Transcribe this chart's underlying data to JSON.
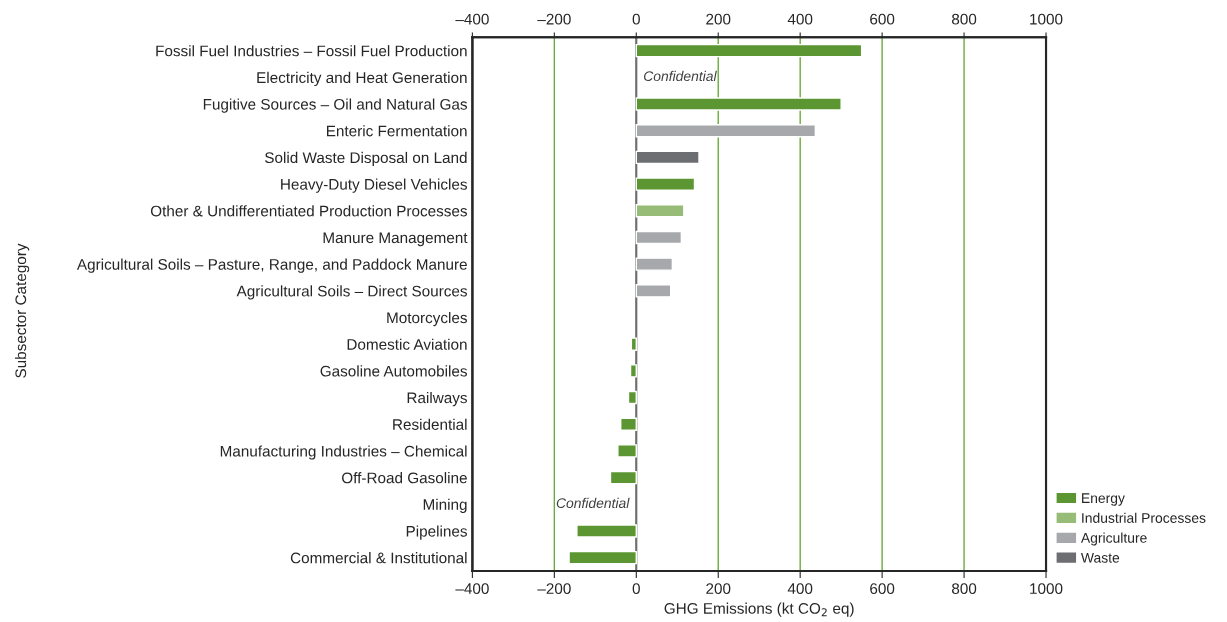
{
  "chart_data": {
    "type": "bar",
    "orientation": "horizontal",
    "xlabel": "GHG Emissions (kt CO$_{2}$ eq)",
    "ylabel": "Subsector Category",
    "categories": [
      "Fossil Fuel Industries – Fossil Fuel Production",
      "Electricity and Heat Generation",
      "Fugitive Sources – Oil and Natural Gas",
      "Enteric Fermentation",
      "Solid Waste Disposal on Land",
      "Heavy-Duty Diesel Vehicles",
      "Other & Undifferentiated Production Processes",
      "Manure Management",
      "Agricultural Soils – Pasture, Range, and Paddock Manure",
      "Agricultural Soils – Direct Sources",
      "Motorcycles",
      "Domestic Aviation",
      "Gasoline Automobiles",
      "Railways",
      "Residential",
      "Manufacturing Industries – Chemical",
      "Off-Road Gasoline",
      "Mining",
      "Pipelines",
      "Commercial & Institutional"
    ],
    "series": [
      {
        "name": "Energy",
        "color": "#5b9632",
        "values": [
          550,
          null,
          500,
          null,
          null,
          142,
          null,
          null,
          null,
          null,
          null,
          -12,
          -14,
          -19,
          -38,
          -45,
          -63,
          null,
          -145,
          -164
        ],
        "value_labels": [
          null,
          "Confidential",
          null,
          null,
          null,
          null,
          null,
          null,
          null,
          null,
          null,
          null,
          null,
          null,
          null,
          null,
          null,
          "Confidential",
          null,
          null
        ]
      },
      {
        "name": "Industrial Processes",
        "color": "#96bc78",
        "values": [
          null,
          null,
          null,
          null,
          null,
          null,
          116,
          null,
          null,
          null,
          null,
          null,
          null,
          null,
          null,
          null,
          null,
          null,
          null,
          null
        ]
      },
      {
        "name": "Agriculture",
        "color": "#a7a8ab",
        "values": [
          null,
          null,
          null,
          437,
          null,
          null,
          null,
          110,
          88,
          84,
          null,
          null,
          null,
          null,
          null,
          null,
          null,
          null,
          null,
          null
        ]
      },
      {
        "name": "Waste",
        "color": "#6d6e71",
        "values": [
          null,
          null,
          null,
          null,
          153,
          null,
          null,
          null,
          null,
          null,
          null,
          null,
          null,
          null,
          null,
          null,
          null,
          null,
          null,
          null
        ]
      }
    ],
    "xlim": [
      -400,
      1000
    ],
    "xticks": [
      {
        "value": -400,
        "label": "–400"
      },
      {
        "value": -200,
        "label": "–200"
      },
      0,
      200,
      400,
      600,
      800,
      1000
    ],
    "x2lim": [
      -400,
      1000
    ],
    "x2ticks": [
      {
        "value": -400,
        "label": "–400"
      },
      {
        "value": -200,
        "label": "–200"
      },
      0,
      200,
      400,
      600,
      800,
      1000
    ],
    "grid": "x",
    "legend": "bottom right",
    "ref_lines": [
      {
        "axis": "x",
        "value": 0,
        "color": "#6d6e71"
      }
    ]
  }
}
